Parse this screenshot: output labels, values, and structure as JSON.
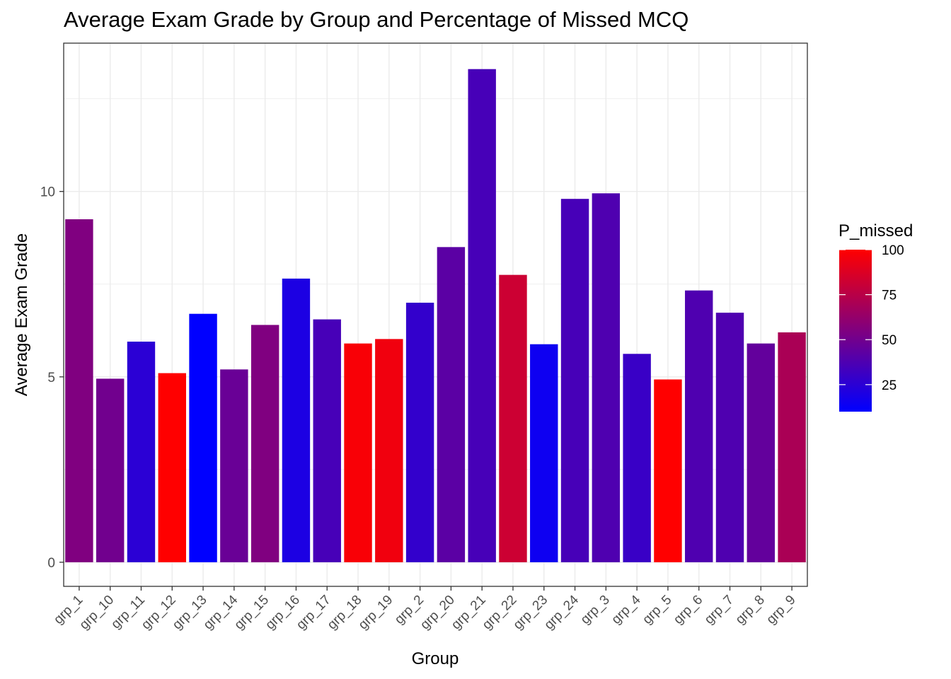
{
  "chart_data": {
    "type": "bar",
    "title": "Average Exam Grade by Group and Percentage of Missed MCQ",
    "xlabel": "Group",
    "ylabel": "Average Exam Grade",
    "categories": [
      "grp_1",
      "grp_10",
      "grp_11",
      "grp_12",
      "grp_13",
      "grp_14",
      "grp_15",
      "grp_16",
      "grp_17",
      "grp_18",
      "grp_19",
      "grp_2",
      "grp_20",
      "grp_21",
      "grp_22",
      "grp_23",
      "grp_24",
      "grp_3",
      "grp_4",
      "grp_5",
      "grp_6",
      "grp_7",
      "grp_8",
      "grp_9"
    ],
    "values": [
      9.25,
      4.95,
      5.95,
      5.1,
      6.7,
      5.2,
      6.4,
      7.65,
      6.55,
      5.9,
      6.02,
      7.0,
      8.5,
      13.3,
      7.75,
      5.88,
      9.8,
      9.95,
      5.62,
      4.93,
      7.33,
      6.73,
      5.9,
      6.2
    ],
    "p_missed": [
      55,
      50,
      25,
      100,
      10,
      47,
      55,
      20,
      35,
      98,
      95,
      28,
      42,
      35,
      82,
      15,
      35,
      38,
      30,
      100,
      38,
      38,
      45,
      70
    ],
    "ylim": [
      -0.65,
      14.0
    ],
    "yticks": [
      0,
      5,
      10
    ],
    "grid": true,
    "legend": {
      "title": "P_missed",
      "placement": "right",
      "range": [
        10,
        100
      ],
      "ticks": [
        25,
        50,
        75,
        100
      ],
      "color_low": "#0000ff",
      "color_high": "#ff0000"
    }
  }
}
